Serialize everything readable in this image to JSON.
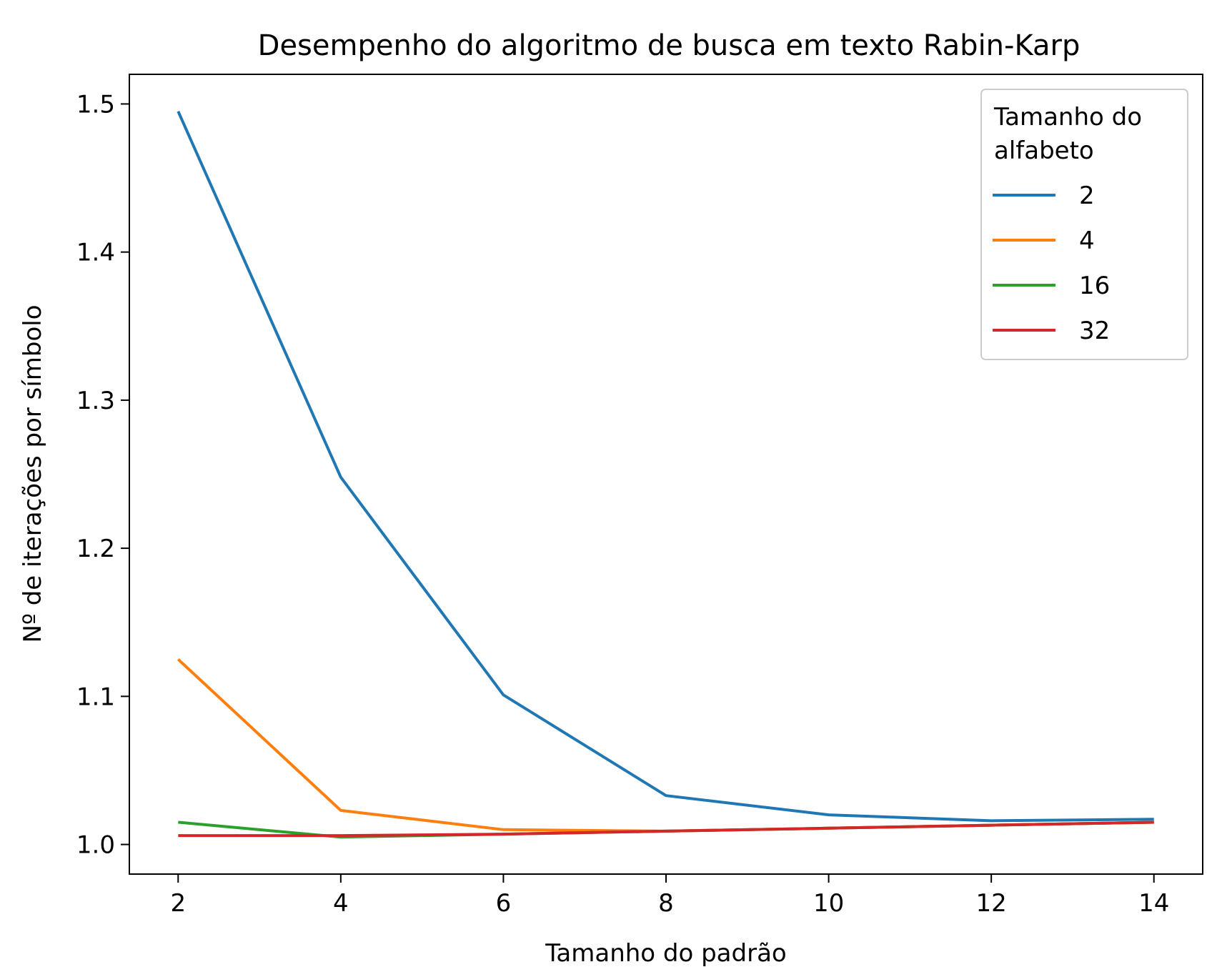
{
  "chart_data": {
    "type": "line",
    "title": "Desempenho do algoritmo de busca em texto Rabin-Karp",
    "xlabel": "Tamanho do padrão",
    "ylabel": "Nº de iterações por símbolo",
    "x": [
      2,
      4,
      6,
      8,
      10,
      12,
      14
    ],
    "xlim": [
      1.4,
      14.6
    ],
    "ylim": [
      0.98,
      1.52
    ],
    "xticks": [
      2,
      4,
      6,
      8,
      10,
      12,
      14
    ],
    "xtick_labels": [
      "2",
      "4",
      "6",
      "8",
      "10",
      "12",
      "14"
    ],
    "yticks": [
      1.0,
      1.1,
      1.2,
      1.3,
      1.4,
      1.5
    ],
    "ytick_labels": [
      "1.0",
      "1.1",
      "1.2",
      "1.3",
      "1.4",
      "1.5"
    ],
    "grid": false,
    "legend": {
      "title_lines": [
        "Tamanho do",
        "alfabeto"
      ],
      "placement": "top-right"
    },
    "series": [
      {
        "name": "2",
        "color": "#1f77b4",
        "values": [
          1.495,
          1.248,
          1.101,
          1.033,
          1.02,
          1.016,
          1.017
        ]
      },
      {
        "name": "4",
        "color": "#ff7f0e",
        "values": [
          1.125,
          1.023,
          1.01,
          1.009,
          1.011,
          1.013,
          1.015
        ]
      },
      {
        "name": "16",
        "color": "#2ca02c",
        "values": [
          1.015,
          1.005,
          1.007,
          1.009,
          1.011,
          1.013,
          1.015
        ]
      },
      {
        "name": "32",
        "color": "#d62728",
        "values": [
          1.006,
          1.006,
          1.007,
          1.009,
          1.011,
          1.013,
          1.015
        ]
      }
    ]
  }
}
